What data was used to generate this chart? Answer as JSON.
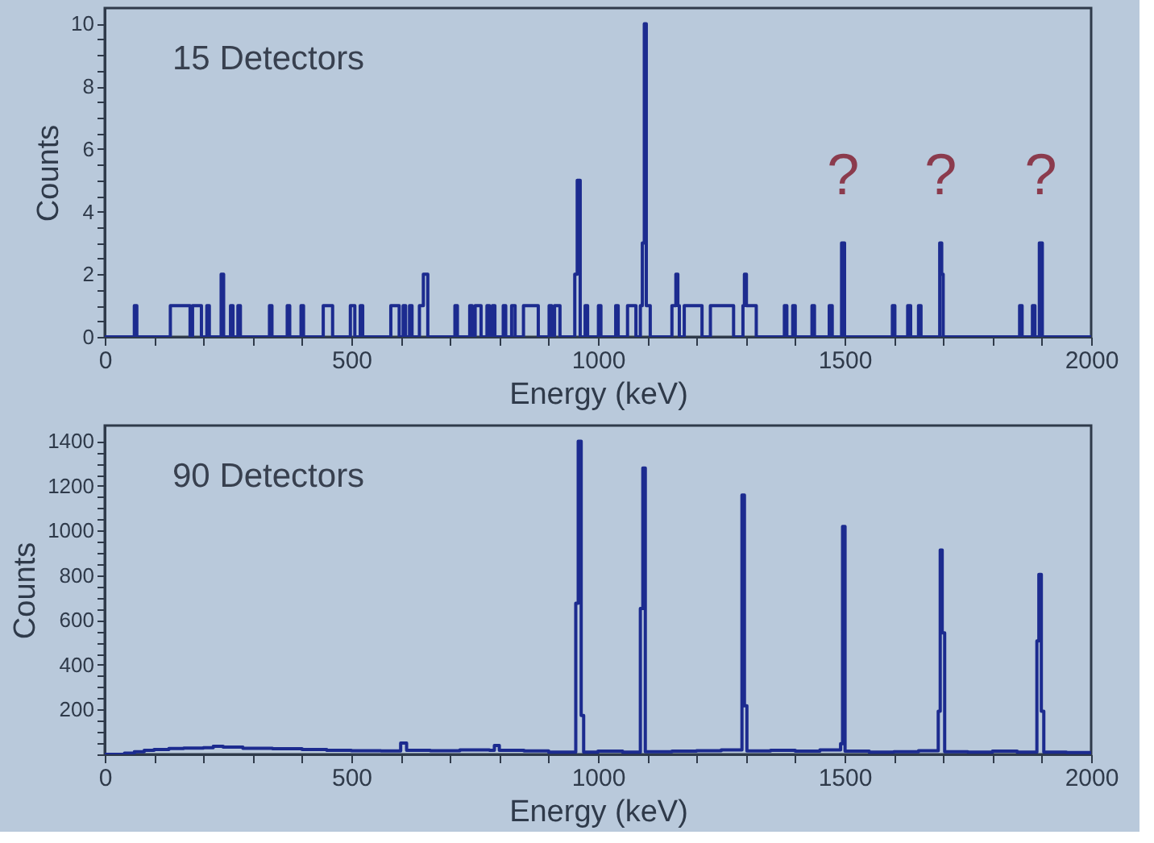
{
  "chart_data": [
    {
      "type": "step",
      "xlabel": "Energy (keV)",
      "ylabel": "Counts",
      "grid": false,
      "annotations": [
        "15 Detectors",
        {
          "text": "?",
          "x": 1497,
          "y": 3
        },
        {
          "text": "?",
          "x": 1695,
          "y": 3
        },
        {
          "text": "?",
          "x": 1898,
          "y": 3
        }
      ],
      "xlim": [
        0,
        2000
      ],
      "ylim": [
        0,
        10.5
      ],
      "xticks": [
        0,
        {
          "value": 100,
          "label": null
        },
        {
          "value": 200,
          "label": null
        },
        {
          "value": 300,
          "label": null
        },
        {
          "value": 400,
          "label": null
        },
        500,
        {
          "value": 600,
          "label": null
        },
        {
          "value": 700,
          "label": null
        },
        {
          "value": 800,
          "label": null
        },
        {
          "value": 900,
          "label": null
        },
        1000,
        {
          "value": 1100,
          "label": null
        },
        {
          "value": 1200,
          "label": null
        },
        {
          "value": 1300,
          "label": null
        },
        {
          "value": 1400,
          "label": null
        },
        1500,
        {
          "value": 1600,
          "label": null
        },
        {
          "value": 1700,
          "label": null
        },
        {
          "value": 1800,
          "label": null
        },
        {
          "value": 1900,
          "label": null
        },
        2000
      ],
      "yticks": [
        0,
        {
          "value": 0.5,
          "label": null
        },
        {
          "value": 1,
          "label": null
        },
        {
          "value": 1.5,
          "label": null
        },
        2,
        {
          "value": 2.5,
          "label": null
        },
        {
          "value": 3,
          "label": null
        },
        {
          "value": 3.5,
          "label": null
        },
        4,
        {
          "value": 4.5,
          "label": null
        },
        {
          "value": 5,
          "label": null
        },
        {
          "value": 5.5,
          "label": null
        },
        6,
        {
          "value": 6.5,
          "label": null
        },
        {
          "value": 7,
          "label": null
        },
        {
          "value": 7.5,
          "label": null
        },
        8,
        {
          "value": 8.5,
          "label": null
        },
        {
          "value": 9,
          "label": null
        },
        {
          "value": 9.5,
          "label": null
        },
        10
      ],
      "series": [
        {
          "color": "#1c2b8f",
          "x": [
            0,
            60,
            65,
            133,
            173,
            178,
            196,
            207,
            212,
            236,
            241,
            255,
            260,
            270,
            275,
            334,
            339,
            370,
            375,
            398,
            403,
            443,
            462,
            498,
            507,
            518,
            523,
            580,
            597,
            605,
            610,
            618,
            623,
            638,
            646,
            655,
            710,
            715,
            740,
            745,
            751,
            763,
            775,
            780,
            786,
            791,
            808,
            813,
            825,
            832,
            849,
            879,
            901,
            906,
            912,
            923,
            953,
            958,
            964,
            974,
            979,
            1001,
            1006,
            1036,
            1041,
            1060,
            1077,
            1086,
            1090,
            1094,
            1098,
            1106,
            1150,
            1158,
            1162,
            1165,
            1175,
            1211,
            1228,
            1275,
            1294,
            1297,
            1301,
            1321,
            1378,
            1383,
            1395,
            1400,
            1434,
            1439,
            1469,
            1475,
            1494,
            1500,
            1597,
            1602,
            1628,
            1634,
            1650,
            1655,
            1693,
            1697,
            1700,
            1855,
            1860,
            1881,
            1886,
            1895,
            1901,
            2000
          ],
          "values": [
            0,
            1,
            0,
            1,
            0,
            1,
            0,
            1,
            0,
            2,
            0,
            1,
            0,
            1,
            0,
            1,
            0,
            1,
            0,
            1,
            0,
            1,
            0,
            1,
            0,
            1,
            0,
            1,
            0,
            1,
            0,
            1,
            0,
            1,
            2,
            0,
            1,
            0,
            1,
            0,
            1,
            0,
            1,
            0,
            1,
            0,
            1,
            0,
            1,
            0,
            1,
            0,
            1,
            0,
            1,
            0,
            2,
            5,
            0,
            1,
            0,
            1,
            0,
            1,
            0,
            1,
            0,
            1,
            3,
            10,
            1,
            0,
            1,
            2,
            1,
            0,
            1,
            0,
            1,
            0,
            1,
            2,
            1,
            0,
            1,
            0,
            1,
            0,
            1,
            0,
            1,
            0,
            3,
            0,
            1,
            0,
            1,
            0,
            1,
            0,
            3,
            2,
            0,
            1,
            0,
            1,
            0,
            3,
            0,
            0
          ]
        }
      ]
    },
    {
      "type": "step",
      "xlabel": "Energy (keV)",
      "ylabel": "Counts",
      "grid": false,
      "annotations": [
        "90 Detectors"
      ],
      "xlim": [
        0,
        2000
      ],
      "ylim": [
        0,
        1470
      ],
      "xticks": [
        0,
        {
          "value": 100,
          "label": null
        },
        {
          "value": 200,
          "label": null
        },
        {
          "value": 300,
          "label": null
        },
        {
          "value": 400,
          "label": null
        },
        500,
        {
          "value": 600,
          "label": null
        },
        {
          "value": 700,
          "label": null
        },
        {
          "value": 800,
          "label": null
        },
        {
          "value": 900,
          "label": null
        },
        1000,
        {
          "value": 1100,
          "label": null
        },
        {
          "value": 1200,
          "label": null
        },
        {
          "value": 1300,
          "label": null
        },
        {
          "value": 1400,
          "label": null
        },
        1500,
        {
          "value": 1600,
          "label": null
        },
        {
          "value": 1700,
          "label": null
        },
        {
          "value": 1800,
          "label": null
        },
        {
          "value": 1900,
          "label": null
        },
        2000
      ],
      "yticks": [
        {
          "value": 0,
          "label": null
        },
        {
          "value": 50,
          "label": null
        },
        {
          "value": 100,
          "label": null
        },
        {
          "value": 150,
          "label": null
        },
        200,
        {
          "value": 250,
          "label": null
        },
        {
          "value": 300,
          "label": null
        },
        {
          "value": 350,
          "label": null
        },
        400,
        {
          "value": 450,
          "label": null
        },
        {
          "value": 500,
          "label": null
        },
        {
          "value": 550,
          "label": null
        },
        600,
        {
          "value": 650,
          "label": null
        },
        {
          "value": 700,
          "label": null
        },
        {
          "value": 750,
          "label": null
        },
        800,
        {
          "value": 850,
          "label": null
        },
        {
          "value": 900,
          "label": null
        },
        {
          "value": 950,
          "label": null
        },
        1000,
        {
          "value": 1050,
          "label": null
        },
        {
          "value": 1100,
          "label": null
        },
        {
          "value": 1150,
          "label": null
        },
        1200,
        {
          "value": 1250,
          "label": null
        },
        {
          "value": 1300,
          "label": null
        },
        {
          "value": 1350,
          "label": null
        },
        1400
      ],
      "series": [
        {
          "color": "#1c2b8f",
          "x": [
            0,
            40,
            60,
            80,
            100,
            130,
            160,
            200,
            220,
            240,
            280,
            340,
            400,
            450,
            500,
            560,
            600,
            612,
            660,
            720,
            780,
            790,
            800,
            850,
            900,
            955,
            960,
            966,
            971,
            1000,
            1050,
            1086,
            1091,
            1096,
            1150,
            1200,
            1250,
            1292,
            1297,
            1302,
            1350,
            1400,
            1450,
            1492,
            1496,
            1501,
            1550,
            1600,
            1650,
            1690,
            1694,
            1698,
            1703,
            1750,
            1800,
            1850,
            1890,
            1894,
            1899,
            1904,
            1950,
            2000
          ],
          "values": [
            0,
            5,
            12,
            18,
            22,
            26,
            28,
            30,
            36,
            32,
            27,
            25,
            22,
            18,
            16,
            15,
            50,
            18,
            16,
            20,
            18,
            40,
            18,
            15,
            10,
            676,
            1400,
            174,
            10,
            14,
            10,
            652,
            1280,
            12,
            14,
            16,
            20,
            1159,
            217,
            15,
            18,
            14,
            20,
            48,
            1019,
            14,
            10,
            12,
            16,
            193,
            913,
            543,
            12,
            10,
            14,
            10,
            507,
            804,
            193,
            10,
            8,
            0
          ]
        }
      ]
    }
  ]
}
